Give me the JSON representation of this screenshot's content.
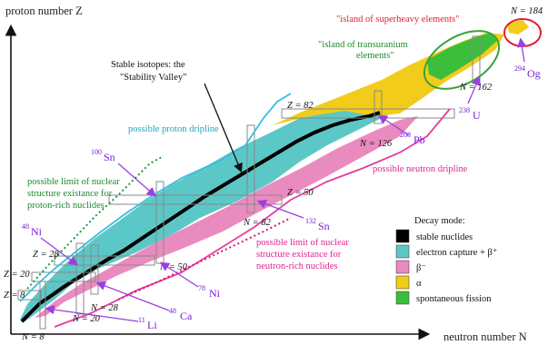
{
  "axes": {
    "y_label": "proton number Z",
    "x_label": "neutron number N"
  },
  "magic_numbers": {
    "z8": "Z = 8",
    "z20": "Z = 20",
    "z28": "Z = 28",
    "z50": "Z = 50",
    "z82": "Z = 82",
    "n8": "N = 8",
    "n20": "N = 20",
    "n28": "N = 28",
    "n50": "N = 50",
    "n82": "N = 82",
    "n126": "N = 126",
    "n162": "N = 162",
    "n184": "N = 184"
  },
  "nuclides": {
    "ni48": {
      "mass": "48",
      "symbol": "Ni"
    },
    "ni78": {
      "mass": "78",
      "symbol": "Ni"
    },
    "ca48": {
      "mass": "48",
      "symbol": "Ca"
    },
    "li11": {
      "mass": "11",
      "symbol": "Li"
    },
    "sn100": {
      "mass": "100",
      "symbol": "Sn"
    },
    "sn132": {
      "mass": "132",
      "symbol": "Sn"
    },
    "pb208": {
      "mass": "208",
      "symbol": "Pb"
    },
    "u238": {
      "mass": "238",
      "symbol": "U"
    },
    "og294": {
      "mass": "294",
      "symbol": "Og"
    }
  },
  "annotations": {
    "island_superheavy": "\"island of superheavy elements\"",
    "island_transuranium_1": "\"island of transuranium",
    "island_transuranium_2": "elements\"",
    "stable_1": "Stable isotopes: the",
    "stable_2": "\"Stability Valley\"",
    "proton_dripline": "possible proton dripline",
    "neutron_dripline": "possible neutron dripline",
    "limit_proton_1": "possible limit of nuclear",
    "limit_proton_2": "structure existance for",
    "limit_proton_3": "proton-rich nuclides",
    "limit_neutron_1": "possible limit of nuclear",
    "limit_neutron_2": "structure existance for",
    "limit_neutron_3": "neutron-rich nuclides"
  },
  "legend": {
    "title": "Decay mode:",
    "items": [
      {
        "label": "stable nuclides",
        "color": "#000000"
      },
      {
        "label": "electron capture + β⁺",
        "color": "#5cc7c7"
      },
      {
        "label": "β⁻",
        "color": "#ea8bbf"
      },
      {
        "label": "α",
        "color": "#f1cc1a"
      },
      {
        "label": "spontaneous fission",
        "color": "#3cbe3c"
      }
    ]
  },
  "colors": {
    "stable": "#000000",
    "ec_beta_plus": "#5cc7c7",
    "beta_minus": "#ea8bbf",
    "alpha": "#f1cc1a",
    "fission": "#3cbe3c",
    "pointer": "#9b3fe0",
    "proton_dripline": "#37bde0",
    "neutron_dripline": "#e63c9f",
    "limit_green": "#1f9a3a",
    "island_red": "#e0202a",
    "island_green": "#3aa13a"
  }
}
